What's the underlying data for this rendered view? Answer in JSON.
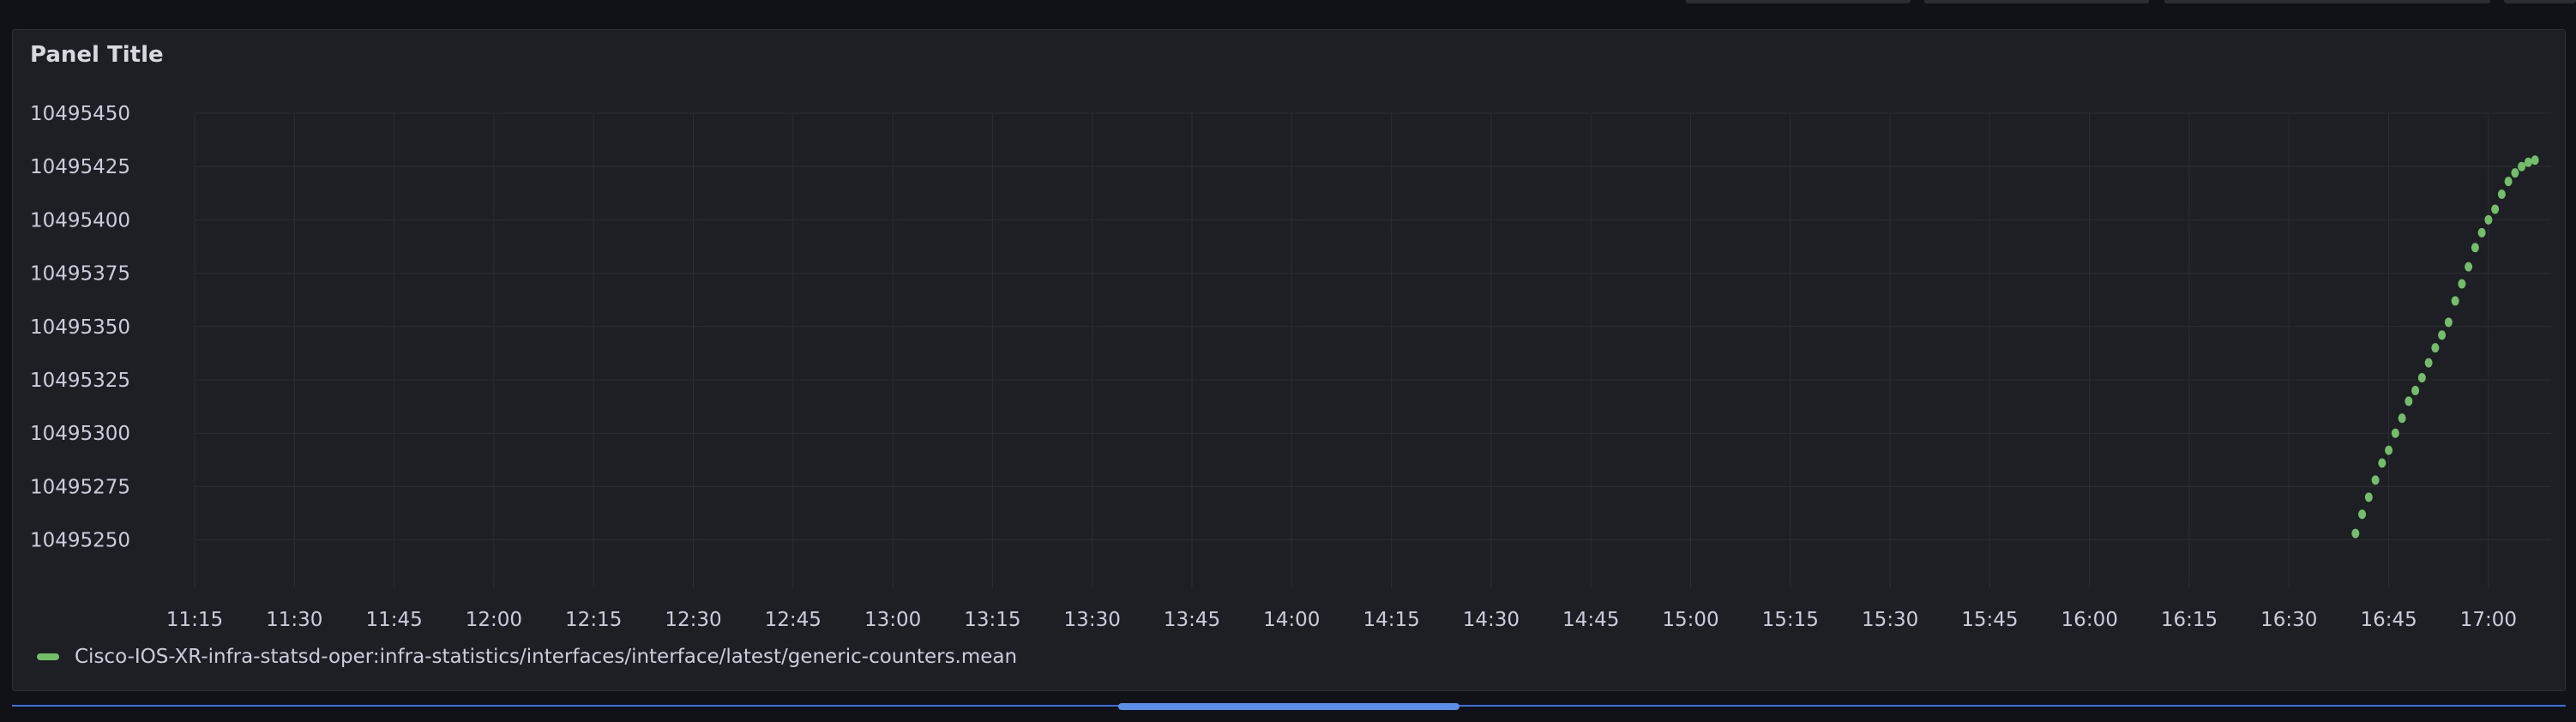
{
  "panel": {
    "title": "Panel Title"
  },
  "colors": {
    "series": "#73bf69",
    "grid": "#2c2e34",
    "background": "#1e1f24",
    "scrollbar": "#3d71d9"
  },
  "chart_data": {
    "type": "scatter",
    "title": "Panel Title",
    "xlabel": "",
    "ylabel": "",
    "x_ticks": [
      "11:15",
      "11:30",
      "11:45",
      "12:00",
      "12:15",
      "12:30",
      "12:45",
      "13:00",
      "13:15",
      "13:30",
      "13:45",
      "14:00",
      "14:15",
      "14:30",
      "14:45",
      "15:00",
      "15:15",
      "15:30",
      "15:45",
      "16:00",
      "16:15",
      "16:30",
      "16:45",
      "17:00"
    ],
    "y_ticks": [
      10495450,
      10495425,
      10495400,
      10495375,
      10495350,
      10495325,
      10495300,
      10495275,
      10495250
    ],
    "ylim": [
      10495243,
      10495450
    ],
    "grid": true,
    "legend_position": "bottom-left",
    "series": [
      {
        "name": "Cisco-IOS-XR-infra-statsd-oper:infra-statistics/interfaces/interface/latest/generic-counters.mean",
        "x": [
          "16:40",
          "16:41",
          "16:42",
          "16:43",
          "16:44",
          "16:45",
          "16:46",
          "16:47",
          "16:48",
          "16:49",
          "16:50",
          "16:51",
          "16:52",
          "16:53",
          "16:54",
          "16:55",
          "16:56",
          "16:57",
          "16:58",
          "16:59",
          "17:00",
          "17:01",
          "17:02",
          "17:03",
          "17:04",
          "17:05",
          "17:06",
          "17:07"
        ],
        "y": [
          10495253,
          10495262,
          10495270,
          10495278,
          10495286,
          10495292,
          10495300,
          10495307,
          10495315,
          10495320,
          10495326,
          10495333,
          10495340,
          10495346,
          10495352,
          10495362,
          10495370,
          10495378,
          10495387,
          10495394,
          10495400,
          10495405,
          10495412,
          10495418,
          10495422,
          10495425,
          10495427,
          10495428
        ]
      }
    ]
  },
  "scrollbar": {
    "position": 0.43,
    "size": 0.134
  }
}
